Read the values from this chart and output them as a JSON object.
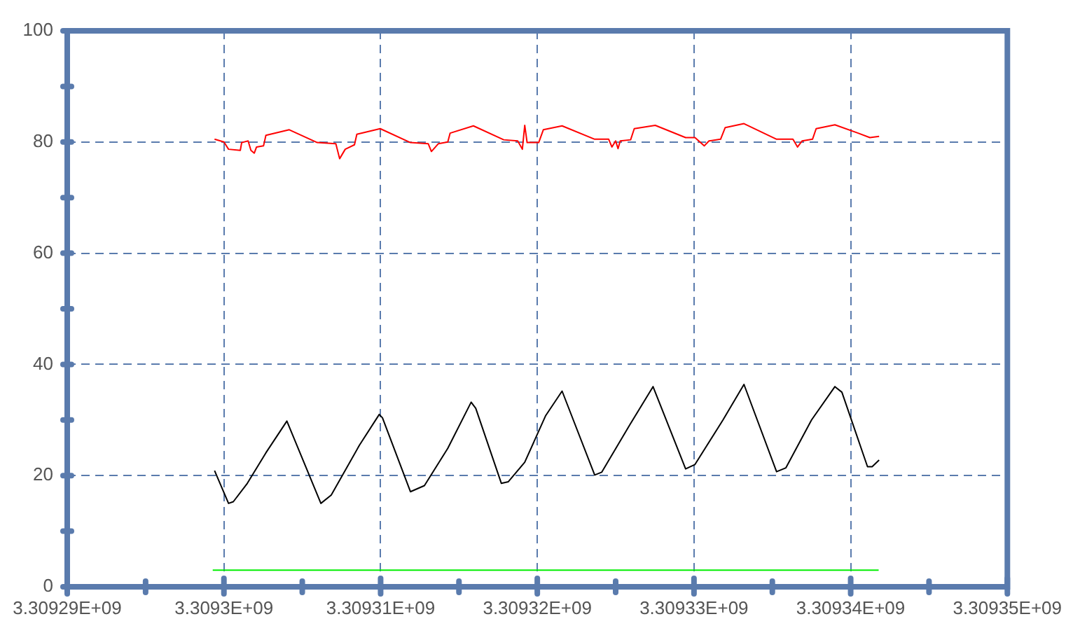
{
  "chart_data": {
    "type": "line",
    "marker": "none",
    "line_style": "solid",
    "grid": true,
    "xlim": [
      3309290000,
      3309350000
    ],
    "ylim": [
      0,
      100
    ],
    "xticks": [
      {
        "value": 3309290000,
        "label": "3.30929E+09"
      },
      {
        "value": 3309295000,
        "label": null
      },
      {
        "value": 3309300000,
        "label": "3.3093E+09"
      },
      {
        "value": 3309305000,
        "label": null
      },
      {
        "value": 3309310000,
        "label": "3.30931E+09"
      },
      {
        "value": 3309315000,
        "label": null
      },
      {
        "value": 3309320000,
        "label": "3.30932E+09"
      },
      {
        "value": 3309325000,
        "label": null
      },
      {
        "value": 3309330000,
        "label": "3.30933E+09"
      },
      {
        "value": 3309335000,
        "label": null
      },
      {
        "value": 3309340000,
        "label": "3.30934E+09"
      },
      {
        "value": 3309345000,
        "label": null
      },
      {
        "value": 3309350000,
        "label": "3.30935E+09"
      }
    ],
    "yticks": [
      0,
      {
        "value": 10,
        "label": null
      },
      20,
      {
        "value": 30,
        "label": null
      },
      40,
      {
        "value": 50,
        "label": null
      },
      60,
      {
        "value": 70,
        "label": null
      },
      80,
      {
        "value": 90,
        "label": null
      },
      100
    ],
    "series": [
      {
        "color": "#ff0000",
        "x": [
          3309299402,
          3309300000,
          3309300295,
          3309301045,
          3309301134,
          3309301545,
          3309301724,
          3309301938,
          3309302081,
          3309302527,
          3309302679,
          3309304170,
          3309305956,
          3309307143,
          3309307385,
          3309307742,
          3309308331,
          3309308483,
          3309309975,
          3309311903,
          3309313037,
          3309313242,
          3309313689,
          3309314287,
          3309314438,
          3309315921,
          3309317858,
          3309318751,
          3309319046,
          3309319198,
          3309319350,
          3309320090,
          3309320385,
          3309321582,
          3309323663,
          3309324556,
          3309324761,
          3309325000,
          3309325152,
          3309325295,
          3309325956,
          3309326189,
          3309327528,
          3309329466,
          3309330064,
          3309330654,
          3309330957,
          3309331698,
          3309331993,
          3309333190,
          3309335270,
          3309336315,
          3309336609,
          3309336904,
          3309337565,
          3309337797,
          3309338994,
          3309340476,
          3309341226,
          3309341815
        ],
        "values": [
          80.5,
          80.0,
          78.7,
          78.5,
          79.9,
          80.2,
          78.5,
          78.0,
          79.1,
          79.3,
          81.2,
          82.2,
          79.9,
          79.7,
          77.0,
          78.7,
          79.5,
          81.4,
          82.4,
          79.9,
          79.7,
          78.3,
          79.7,
          80.0,
          81.6,
          82.9,
          80.4,
          80.2,
          78.7,
          83.0,
          79.9,
          79.9,
          82.2,
          82.9,
          80.5,
          80.5,
          79.1,
          80.2,
          78.8,
          80.2,
          80.4,
          82.4,
          83.0,
          80.8,
          80.8,
          79.3,
          80.2,
          80.5,
          82.6,
          83.3,
          80.5,
          80.5,
          79.1,
          80.2,
          80.5,
          82.4,
          83.1,
          81.6,
          80.8,
          81.0
        ]
      },
      {
        "color": "#000000",
        "x": [
          3309299402,
          3309300295,
          3309300599,
          3309301491,
          3309302679,
          3309304018,
          3309306188,
          3309306849,
          3309308635,
          3309309912,
          3309310117,
          3309311903,
          3309312796,
          3309314287,
          3309315778,
          3309316072,
          3309317707,
          3309318153,
          3309319198,
          3309320537,
          3309321582,
          3309323663,
          3309324108,
          3309325895,
          3309327386,
          3309329466,
          3309330064,
          3309331850,
          3309333190,
          3309335270,
          3309335868,
          3309337502,
          3309338994,
          3309339440,
          3309341074,
          3309341369,
          3309341815
        ],
        "values": [
          20.9,
          15.0,
          15.3,
          18.6,
          24.1,
          29.8,
          15.0,
          16.5,
          25.4,
          31.0,
          30.4,
          17.1,
          18.2,
          24.9,
          33.2,
          32.1,
          18.6,
          18.9,
          22.4,
          30.8,
          35.2,
          20.1,
          20.6,
          29.1,
          36.0,
          21.2,
          22.0,
          30.0,
          36.4,
          20.7,
          21.4,
          30.0,
          36.0,
          35.0,
          21.6,
          21.6,
          22.8
        ]
      },
      {
        "color": "#00ee00",
        "x": [
          3309299286,
          3309341786
        ],
        "values": [
          3,
          3
        ]
      }
    ]
  }
}
